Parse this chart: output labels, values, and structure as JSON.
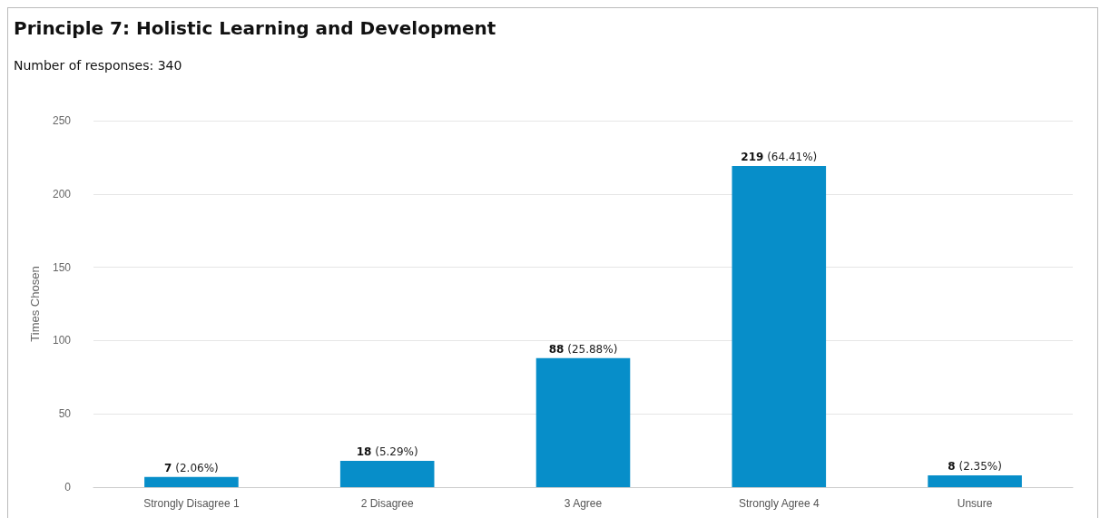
{
  "chart_data": {
    "type": "bar",
    "title": "Principle 7: Holistic Learning and Development",
    "subtitle": "Number of responses: 340",
    "ylabel": "Times Chosen",
    "categories": [
      "Strongly Disagree 1",
      "2 Disagree",
      "3 Agree",
      "Strongly Agree 4",
      "Unsure"
    ],
    "values": [
      7,
      18,
      88,
      219,
      8
    ],
    "color": "#078ec9",
    "value_labels": [
      "7 (2.06%)",
      "18 (5.29%)",
      "88 (25.88%)",
      "219 (64.41%)",
      "8 (2.35%)"
    ],
    "ylim": [
      0,
      250
    ],
    "yticks": [
      0,
      50,
      100,
      150,
      200,
      250
    ],
    "grid": "y"
  }
}
